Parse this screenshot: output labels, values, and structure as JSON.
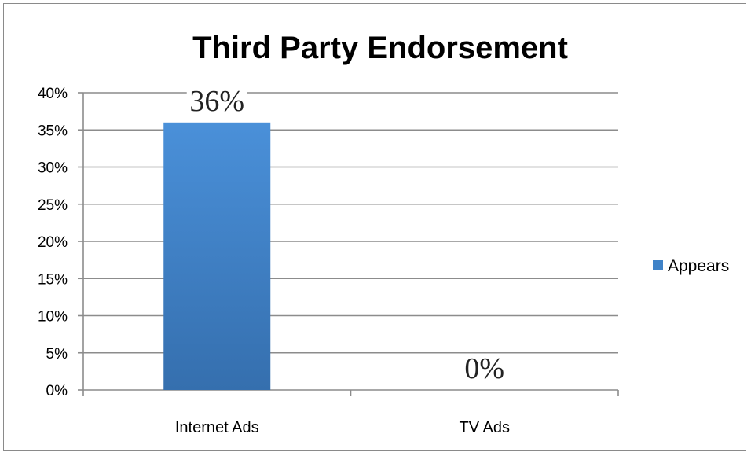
{
  "chart_data": {
    "type": "bar",
    "title": "Third Party Endorsement",
    "xlabel": "",
    "ylabel": "",
    "categories": [
      "Internet Ads",
      "TV Ads"
    ],
    "series": [
      {
        "name": "Appears",
        "values": [
          36,
          0
        ],
        "color": "#3f83c8"
      }
    ],
    "data_labels": [
      "36%",
      "0%"
    ],
    "y_ticks": [
      "0%",
      "5%",
      "10%",
      "15%",
      "20%",
      "25%",
      "30%",
      "35%",
      "40%"
    ],
    "ylim": [
      0,
      40
    ],
    "grid": true,
    "legend_position": "right"
  },
  "colors": {
    "bar_top": "#4a90d9",
    "bar_bottom": "#356fae",
    "grid": "#8c8c8c",
    "frame": "#8a8a8a"
  }
}
